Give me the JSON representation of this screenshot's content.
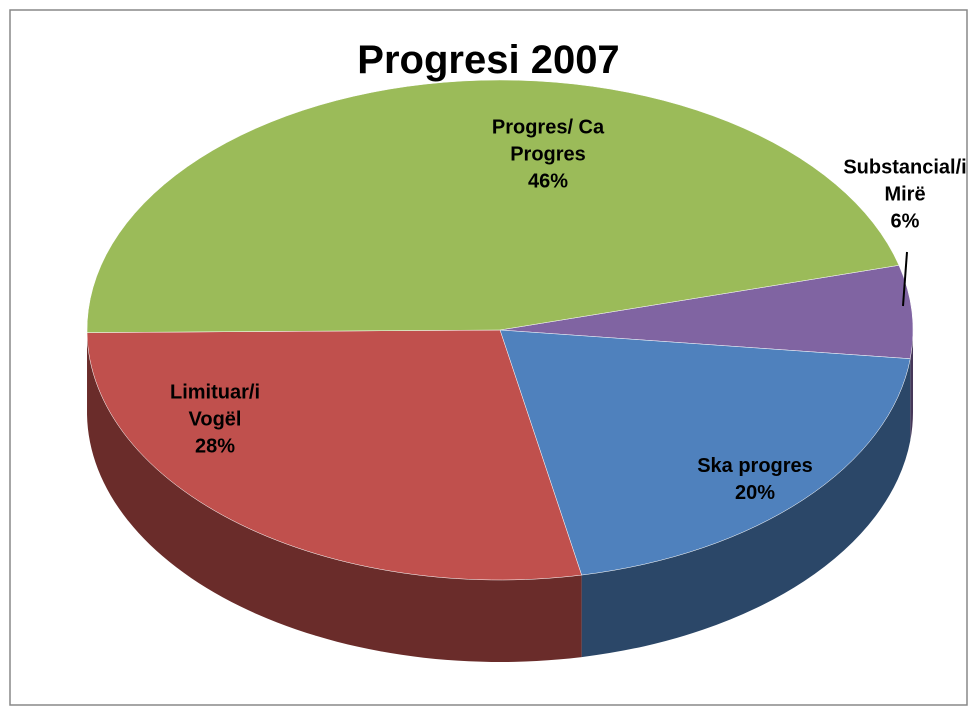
{
  "chart_data": {
    "type": "pie",
    "title": "Progresi 2007",
    "categories": [
      "Substancial/i Mirë",
      "Ska progres",
      "Limituar/i Vogël",
      "Progres/ Ca Progres"
    ],
    "values": [
      6,
      20,
      28,
      46
    ],
    "value_labels": [
      "6%",
      "20%",
      "28%",
      "46%"
    ],
    "colors": [
      "#8064a2",
      "#4f81bd",
      "#c0504d",
      "#9bbb59"
    ]
  }
}
